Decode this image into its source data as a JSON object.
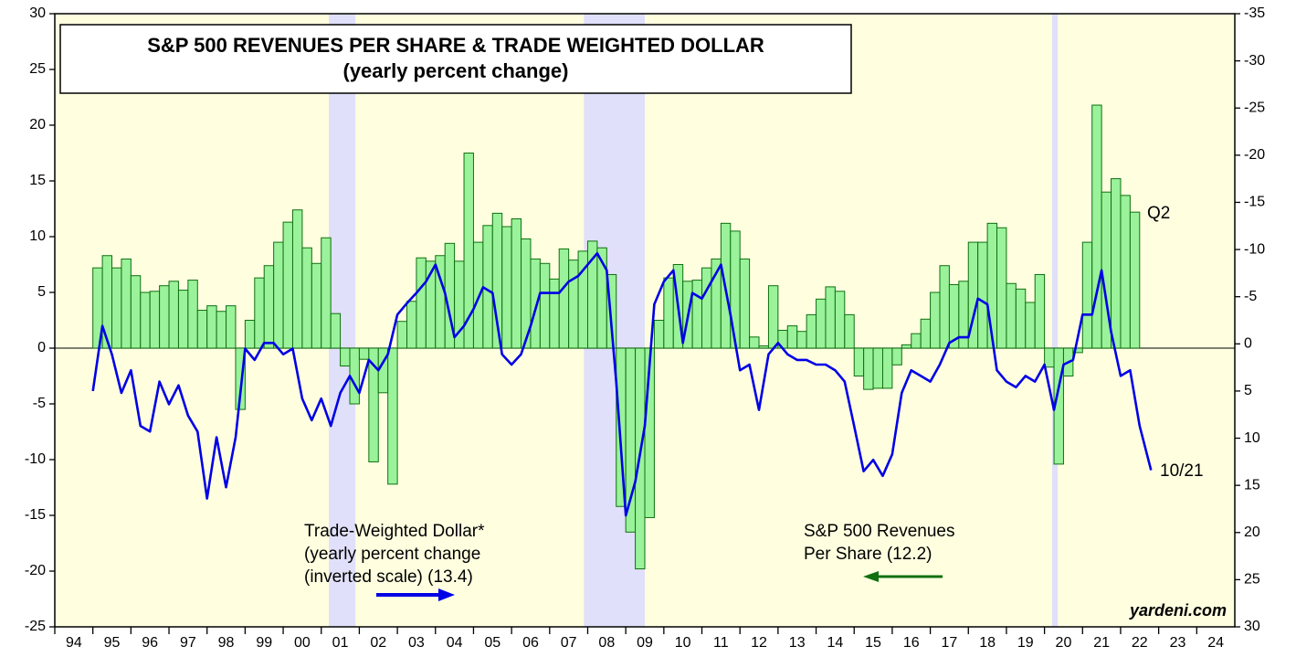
{
  "chart_data": {
    "type": "bar_line",
    "title": "S&P 500 REVENUES PER SHARE & TRADE WEIGHTED DOLLAR",
    "subtitle": "(yearly percent change)",
    "xlim": [
      1994,
      2025
    ],
    "xticks": [
      {
        "value": 1994,
        "label": "94"
      },
      {
        "value": 1995,
        "label": "95"
      },
      {
        "value": 1996,
        "label": "96"
      },
      {
        "value": 1997,
        "label": "97"
      },
      {
        "value": 1998,
        "label": "98"
      },
      {
        "value": 1999,
        "label": "99"
      },
      {
        "value": 2000,
        "label": "00"
      },
      {
        "value": 2001,
        "label": "01"
      },
      {
        "value": 2002,
        "label": "02"
      },
      {
        "value": 2003,
        "label": "03"
      },
      {
        "value": 2004,
        "label": "04"
      },
      {
        "value": 2005,
        "label": "05"
      },
      {
        "value": 2006,
        "label": "06"
      },
      {
        "value": 2007,
        "label": "07"
      },
      {
        "value": 2008,
        "label": "08"
      },
      {
        "value": 2009,
        "label": "09"
      },
      {
        "value": 2010,
        "label": "10"
      },
      {
        "value": 2011,
        "label": "11"
      },
      {
        "value": 2012,
        "label": "12"
      },
      {
        "value": 2013,
        "label": "13"
      },
      {
        "value": 2014,
        "label": "14"
      },
      {
        "value": 2015,
        "label": "15"
      },
      {
        "value": 2016,
        "label": "16"
      },
      {
        "value": 2017,
        "label": "17"
      },
      {
        "value": 2018,
        "label": "18"
      },
      {
        "value": 2019,
        "label": "19"
      },
      {
        "value": 2020,
        "label": "20"
      },
      {
        "value": 2021,
        "label": "21"
      },
      {
        "value": 2022,
        "label": "22"
      },
      {
        "value": 2023,
        "label": "23"
      },
      {
        "value": 2024,
        "label": "24"
      }
    ],
    "ylim": [
      -25,
      30
    ],
    "yticks": [
      -25,
      -20,
      -15,
      -10,
      -5,
      0,
      5,
      10,
      15,
      20,
      25,
      30
    ],
    "y2lim": [
      -35,
      30
    ],
    "y2_inverted": true,
    "y2ticks": [
      -35,
      -30,
      -25,
      -20,
      -15,
      -10,
      -5,
      0,
      5,
      10,
      15,
      20,
      25,
      30
    ],
    "shaded_periods": [
      [
        2001.2,
        2001.9
      ],
      [
        2007.9,
        2009.5
      ],
      [
        2020.2,
        2020.35
      ]
    ],
    "shade_color": "#e0e0fa",
    "background": "#ffffe0",
    "series": [
      {
        "type": "bar",
        "color": "#9af29a",
        "edge_color": "#107010",
        "axis": "y",
        "bar_width": 0.25,
        "x": [
          1995,
          1995.25,
          1995.5,
          1995.75,
          1996,
          1996.25,
          1996.5,
          1996.75,
          1997,
          1997.25,
          1997.5,
          1997.75,
          1998,
          1998.25,
          1998.5,
          1998.75,
          1999,
          1999.25,
          1999.5,
          1999.75,
          2000,
          2000.25,
          2000.5,
          2000.75,
          2001,
          2001.25,
          2001.5,
          2001.75,
          2002,
          2002.25,
          2002.5,
          2002.75,
          2003,
          2003.25,
          2003.5,
          2003.75,
          2004,
          2004.25,
          2004.5,
          2004.75,
          2005,
          2005.25,
          2005.5,
          2005.75,
          2006,
          2006.25,
          2006.5,
          2006.75,
          2007,
          2007.25,
          2007.5,
          2007.75,
          2008,
          2008.25,
          2008.5,
          2008.75,
          2009,
          2009.25,
          2009.5,
          2009.75,
          2010,
          2010.25,
          2010.5,
          2010.75,
          2011,
          2011.25,
          2011.5,
          2011.75,
          2012,
          2012.25,
          2012.5,
          2012.75,
          2013,
          2013.25,
          2013.5,
          2013.75,
          2014,
          2014.25,
          2014.5,
          2014.75,
          2015,
          2015.25,
          2015.5,
          2015.75,
          2016,
          2016.25,
          2016.5,
          2016.75,
          2017,
          2017.25,
          2017.5,
          2017.75,
          2018,
          2018.25,
          2018.5,
          2018.75,
          2019,
          2019.25,
          2019.5,
          2019.75,
          2020,
          2020.25,
          2020.5,
          2020.75,
          2021,
          2021.25,
          2021.5,
          2021.75,
          2022,
          2022.25
        ],
        "values": [
          7.2,
          8.3,
          7.2,
          8.0,
          6.5,
          5.0,
          5.1,
          5.6,
          6.0,
          5.2,
          6.1,
          3.4,
          3.8,
          3.3,
          3.8,
          -5.5,
          2.5,
          6.3,
          7.4,
          9.5,
          11.3,
          12.4,
          9.0,
          7.6,
          9.9,
          3.1,
          -1.6,
          -5.0,
          -1.0,
          -10.2,
          -4.0,
          -12.2,
          2.4,
          4.2,
          8.1,
          7.8,
          8.3,
          9.4,
          7.8,
          17.5,
          9.5,
          11.0,
          12.1,
          10.9,
          11.6,
          9.8,
          8.0,
          7.6,
          6.2,
          8.9,
          7.9,
          8.7,
          9.6,
          9.0,
          6.6,
          -14.2,
          -16.5,
          -19.8,
          -15.2,
          2.5,
          6.3,
          7.5,
          6.0,
          6.1,
          7.2,
          8.0,
          11.2,
          10.5,
          8.0,
          1.0,
          0.2,
          5.6,
          1.6,
          2.0,
          1.5,
          3.0,
          4.4,
          5.5,
          5.1,
          3.0,
          -2.5,
          -3.7,
          -3.6,
          -3.6,
          -1.5,
          0.3,
          1.3,
          2.6,
          5.0,
          7.4,
          5.7,
          6.0,
          9.5,
          9.5,
          11.2,
          10.8,
          5.8,
          5.3,
          4.1,
          6.6,
          -1.7,
          -10.4,
          -2.5,
          -0.4,
          9.5,
          21.8,
          14.0,
          15.2,
          13.7,
          12.2
        ]
      },
      {
        "type": "line",
        "color": "#0000e6",
        "axis": "y2",
        "x": [
          1995,
          1995.25,
          1995.5,
          1995.75,
          1996,
          1996.25,
          1996.5,
          1996.75,
          1997,
          1997.25,
          1997.5,
          1997.75,
          1998,
          1998.25,
          1998.5,
          1998.75,
          1999,
          1999.25,
          1999.5,
          1999.75,
          2000,
          2000.25,
          2000.5,
          2000.75,
          2001,
          2001.25,
          2001.5,
          2001.75,
          2002,
          2002.25,
          2002.5,
          2002.75,
          2003,
          2003.25,
          2003.5,
          2003.75,
          2004,
          2004.25,
          2004.5,
          2004.75,
          2005,
          2005.25,
          2005.5,
          2005.75,
          2006,
          2006.25,
          2006.5,
          2006.75,
          2007,
          2007.25,
          2007.5,
          2007.75,
          2008,
          2008.25,
          2008.5,
          2008.75,
          2009,
          2009.25,
          2009.5,
          2009.75,
          2010,
          2010.25,
          2010.5,
          2010.75,
          2011,
          2011.25,
          2011.5,
          2011.75,
          2012,
          2012.25,
          2012.5,
          2012.75,
          2013,
          2013.25,
          2013.5,
          2013.75,
          2014,
          2014.25,
          2014.5,
          2014.75,
          2015,
          2015.25,
          2015.5,
          2015.75,
          2016,
          2016.25,
          2016.5,
          2016.75,
          2017,
          2017.25,
          2017.5,
          2017.75,
          2018,
          2018.25,
          2018.5,
          2018.75,
          2019,
          2019.25,
          2019.5,
          2019.75,
          2020,
          2020.25,
          2020.5,
          2020.75,
          2021,
          2021.25,
          2021.5,
          2021.75,
          2022,
          2022.25,
          2022.5,
          2022.8
        ],
        "values": [
          5.0,
          -1.9,
          1.1,
          5.2,
          2.8,
          8.7,
          9.3,
          4.0,
          6.4,
          4.4,
          7.6,
          9.3,
          16.4,
          9.9,
          15.2,
          9.9,
          0.5,
          1.7,
          -0.1,
          -0.1,
          1.1,
          0.5,
          5.8,
          8.1,
          5.8,
          8.7,
          5.2,
          3.4,
          5.2,
          1.7,
          2.8,
          1.1,
          -3.1,
          -4.3,
          -5.4,
          -6.6,
          -8.4,
          -5.4,
          -0.7,
          -1.9,
          -3.7,
          -6.0,
          -5.4,
          1.1,
          2.2,
          1.1,
          -1.9,
          -5.4,
          -5.4,
          -5.4,
          -6.6,
          -7.2,
          -8.4,
          -9.6,
          -7.8,
          4.0,
          18.2,
          14.6,
          8.7,
          -4.2,
          -6.6,
          -7.8,
          -0.1,
          -5.4,
          -4.8,
          -6.6,
          -8.4,
          -3.1,
          2.8,
          2.2,
          7.0,
          1.1,
          -0.1,
          1.1,
          1.7,
          1.7,
          2.2,
          2.2,
          2.8,
          4.0,
          8.7,
          13.5,
          12.3,
          14.0,
          11.7,
          5.2,
          2.8,
          3.4,
          4.0,
          2.2,
          -0.1,
          -0.7,
          -0.7,
          -4.8,
          -4.2,
          2.8,
          4.0,
          4.6,
          3.4,
          4.0,
          2.2,
          7.0,
          2.2,
          1.7,
          -3.1,
          -3.1,
          -7.8,
          -1.3,
          3.4,
          2.8,
          8.7,
          13.4
        ]
      }
    ],
    "annotations": [
      {
        "text": "Trade-Weighted Dollar*",
        "color": "#000000"
      },
      {
        "text": "(yearly percent change",
        "color": "#000000"
      },
      {
        "text": "(inverted scale) (13.4)",
        "color": "#000000"
      },
      {
        "text": "S&P 500 Revenues",
        "color": "#000000"
      },
      {
        "text": "Per Share (12.2)",
        "color": "#000000"
      },
      {
        "text": "Q2",
        "color": "#000000"
      },
      {
        "text": "10/21",
        "color": "#0000e6"
      },
      {
        "text": "yardeni.com",
        "color": "#000000"
      }
    ]
  }
}
